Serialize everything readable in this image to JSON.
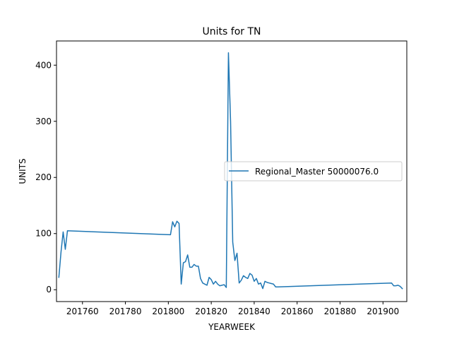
{
  "chart_data": {
    "type": "line",
    "title": "Units for TN",
    "xlabel": "YEARWEEK",
    "ylabel": "UNITS",
    "xlim": [
      201747.9,
      201911.1
    ],
    "ylim": [
      -21.1,
      443.1
    ],
    "xticks": [
      201760,
      201780,
      201800,
      201820,
      201840,
      201860,
      201880,
      201900
    ],
    "yticks": [
      0,
      100,
      200,
      300,
      400
    ],
    "grid": false,
    "legend_position": "center-right",
    "series": [
      {
        "name": "Regional_Master 50000076.0",
        "color": "#1f77b4",
        "x": [
          201749,
          201750,
          201751,
          201752,
          201753,
          201801,
          201802,
          201803,
          201804,
          201805,
          201806,
          201807,
          201808,
          201809,
          201810,
          201811,
          201812,
          201813,
          201814,
          201815,
          201816,
          201817,
          201818,
          201819,
          201820,
          201821,
          201822,
          201823,
          201824,
          201825,
          201826,
          201827,
          201828,
          201829,
          201830,
          201831,
          201832,
          201833,
          201834,
          201835,
          201836,
          201837,
          201838,
          201839,
          201840,
          201841,
          201842,
          201843,
          201844,
          201845,
          201846,
          201847,
          201848,
          201849,
          201850,
          201851,
          201904,
          201905,
          201906,
          201907,
          201908,
          201909
        ],
        "y": [
          22,
          67,
          103,
          72,
          105,
          98,
          121,
          112,
          122,
          118,
          10,
          48,
          50,
          62,
          40,
          40,
          45,
          42,
          42,
          20,
          12,
          10,
          8,
          22,
          18,
          10,
          15,
          10,
          7,
          8,
          9,
          4,
          422,
          300,
          85,
          52,
          65,
          12,
          17,
          25,
          22,
          20,
          29,
          26,
          15,
          20,
          10,
          12,
          2,
          15,
          13,
          12,
          11,
          10,
          5,
          5,
          12,
          7,
          7,
          8,
          6,
          2
        ]
      }
    ]
  }
}
